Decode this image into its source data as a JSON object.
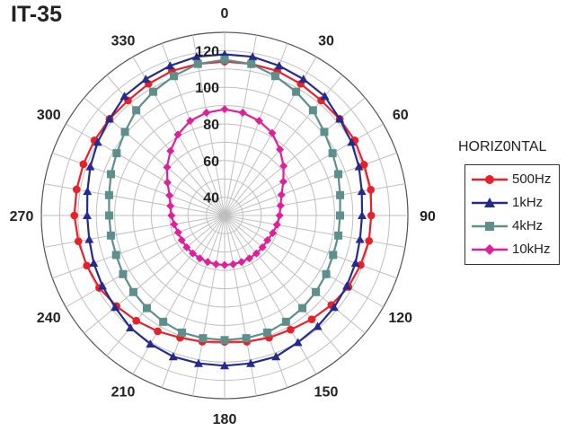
{
  "chart_data": {
    "type": "polar",
    "title": "IT-35",
    "legend_title": "HORIZ0NTAL",
    "legend_position": "right",
    "grid": true,
    "angle_step_deg": 10,
    "angle_labels": [
      "0",
      "30",
      "60",
      "90",
      "120",
      "150",
      "180",
      "210",
      "240",
      "270",
      "300",
      "330"
    ],
    "radial_ticks": [
      40,
      60,
      80,
      100,
      120
    ],
    "rlim": [
      30,
      130
    ],
    "series": [
      {
        "name": "500Hz",
        "color": "#e8202a",
        "marker": "circle",
        "angles": [
          0,
          10,
          20,
          30,
          40,
          50,
          60,
          70,
          80,
          90,
          100,
          110,
          120,
          130,
          140,
          150,
          160,
          170,
          180,
          190,
          200,
          210,
          220,
          230,
          240,
          250,
          260,
          270,
          280,
          290,
          300,
          310,
          320,
          330,
          340,
          350
        ],
        "values": [
          114,
          114,
          114,
          113,
          112,
          112,
          112,
          111,
          111,
          110,
          110,
          109,
          108,
          106,
          104,
          102,
          101,
          100,
          99,
          100,
          101,
          103,
          105,
          107,
          109,
          110,
          111,
          112,
          112,
          112,
          112,
          112,
          112,
          113,
          114,
          114
        ]
      },
      {
        "name": "1kHz",
        "color": "#252b8c",
        "marker": "triangle",
        "angles": [
          0,
          10,
          20,
          30,
          40,
          50,
          60,
          70,
          80,
          90,
          100,
          110,
          120,
          130,
          140,
          150,
          160,
          170,
          180,
          190,
          200,
          210,
          220,
          230,
          240,
          250,
          260,
          270,
          280,
          290,
          300,
          310,
          320,
          330,
          340,
          350
        ],
        "values": [
          118,
          118,
          117,
          116,
          115,
          112,
          110,
          108,
          106,
          105,
          105,
          106,
          107,
          108,
          109,
          110,
          112,
          112,
          112,
          112,
          112,
          111,
          110,
          108,
          107,
          106,
          105,
          105,
          106,
          108,
          110,
          112,
          115,
          116,
          117,
          118
        ]
      },
      {
        "name": "4kHz",
        "color": "#5f8f8c",
        "marker": "square",
        "angles": [
          0,
          10,
          20,
          30,
          40,
          50,
          60,
          70,
          80,
          90,
          100,
          110,
          120,
          130,
          140,
          150,
          160,
          170,
          180,
          190,
          200,
          210,
          220,
          230,
          240,
          250,
          260,
          270,
          280,
          290,
          300,
          310,
          320,
          330,
          340,
          350
        ],
        "values": [
          115,
          114,
          111,
          108,
          105,
          101,
          98,
          96,
          94,
          93,
          93,
          93,
          94,
          95,
          96,
          97,
          98,
          98,
          98,
          98,
          98,
          97,
          96,
          95,
          94,
          93,
          93,
          93,
          94,
          96,
          98,
          101,
          105,
          108,
          111,
          114
        ]
      },
      {
        "name": "10kHz",
        "color": "#e0209a",
        "marker": "diamond",
        "angles": [
          0,
          10,
          20,
          30,
          40,
          50,
          60,
          70,
          80,
          90,
          100,
          110,
          120,
          130,
          140,
          150,
          160,
          170,
          180,
          190,
          200,
          210,
          220,
          230,
          240,
          250,
          260,
          270,
          280,
          290,
          300,
          310,
          320,
          330,
          340,
          350
        ],
        "values": [
          88,
          87,
          85,
          82,
          77,
          72,
          67,
          63,
          61,
          60,
          59,
          58,
          57,
          57,
          57,
          57,
          57,
          57,
          57,
          57,
          57,
          57,
          57,
          57,
          57,
          57,
          58,
          59,
          60,
          62,
          66,
          71,
          76,
          81,
          85,
          87
        ]
      }
    ]
  }
}
